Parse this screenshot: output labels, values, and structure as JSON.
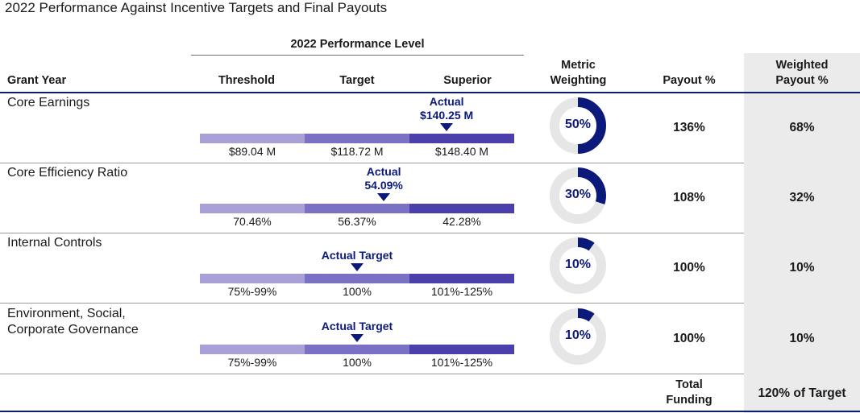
{
  "title": "2022 Performance Against Incentive Targets and Final Payouts",
  "header": {
    "group_label": "2022 Performance Level",
    "grant_year": "Grant Year",
    "threshold": "Threshold",
    "target": "Target",
    "superior": "Superior",
    "metric_weighting": [
      "Metric",
      "Weighting"
    ],
    "payout": "Payout %",
    "weighted_payout": [
      "Weighted",
      "Payout %"
    ]
  },
  "colors": {
    "threshold_bar": "#a9a0d8",
    "target_bar": "#7a70c4",
    "superior_bar": "#4b3fac",
    "accent": "#0b1a7a",
    "donut_track": "#e6e6e6",
    "donut_fill": "#0b1a7a"
  },
  "rows": [
    {
      "label": [
        "Core Earnings"
      ],
      "actual": [
        "Actual",
        "$140.25 M"
      ],
      "actual_position": 0.785,
      "ticks": [
        "$89.04 M",
        "$118.72 M",
        "$148.40 M"
      ],
      "weight_pct": 50,
      "weight_label": "50%",
      "payout": "136%",
      "weighted": "68%"
    },
    {
      "label": [
        "Core Efficiency Ratio"
      ],
      "actual": [
        "Actual",
        "54.09%"
      ],
      "actual_position": 0.585,
      "ticks": [
        "70.46%",
        "56.37%",
        "42.28%"
      ],
      "weight_pct": 30,
      "weight_label": "30%",
      "payout": "108%",
      "weighted": "32%"
    },
    {
      "label": [
        "Internal Controls"
      ],
      "actual": [
        "Actual Target"
      ],
      "actual_position": 0.5,
      "ticks": [
        "75%-99%",
        "100%",
        "101%-125%"
      ],
      "weight_pct": 10,
      "weight_label": "10%",
      "payout": "100%",
      "weighted": "10%"
    },
    {
      "label": [
        "Environment, Social,",
        "Corporate Governance"
      ],
      "actual": [
        "Actual Target"
      ],
      "actual_position": 0.5,
      "ticks": [
        "75%-99%",
        "100%",
        "101%-125%"
      ],
      "weight_pct": 10,
      "weight_label": "10%",
      "payout": "100%",
      "weighted": "10%"
    }
  ],
  "footer": {
    "total_label": [
      "Total",
      "Funding"
    ],
    "total_value": "120% of Target"
  }
}
